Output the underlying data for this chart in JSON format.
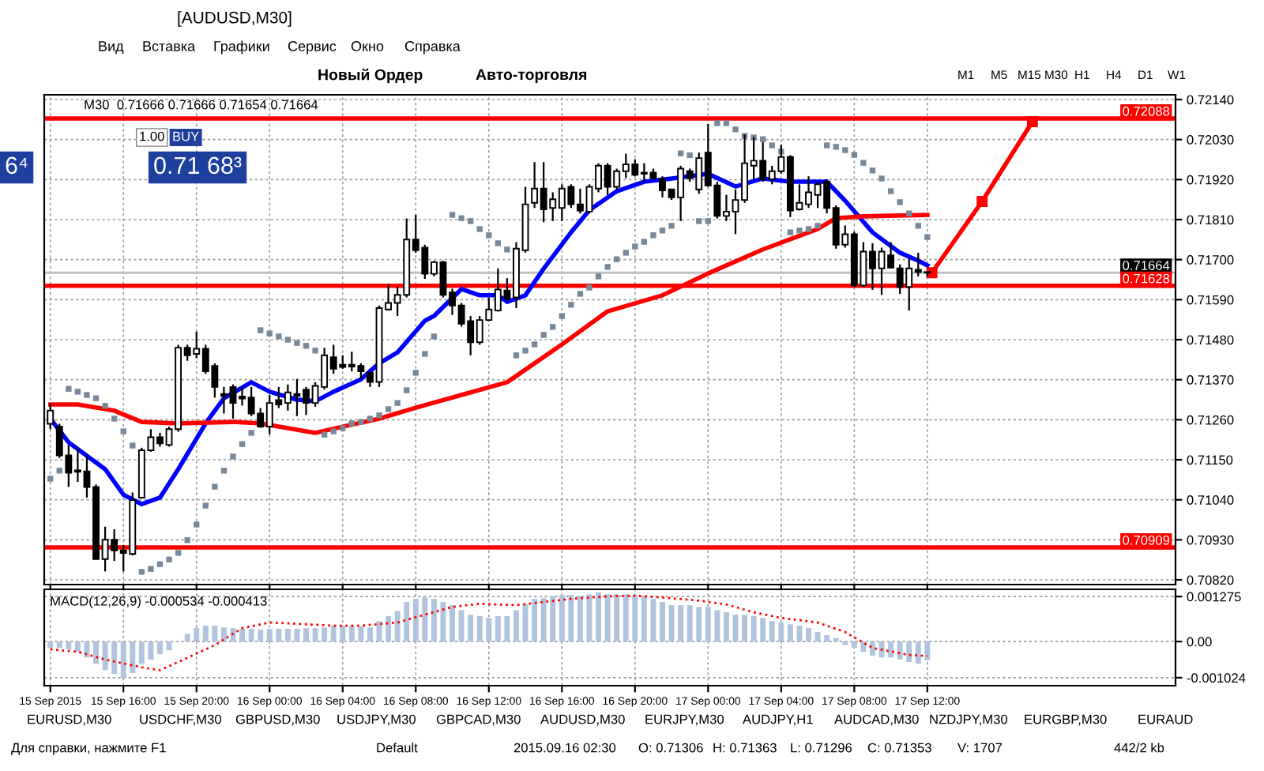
{
  "chart_data": [
    {
      "type": "candlestick",
      "title": "[AUDUSD,M30]",
      "subtitle": "M30  0.71666 0.71666 0.71654 0.71664",
      "x": [
        "2015-09-15T12:00",
        "2015-09-15T12:30",
        "2015-09-15T13:00",
        "2015-09-15T13:30",
        "2015-09-15T14:00",
        "2015-09-15T14:30",
        "2015-09-15T15:00",
        "2015-09-15T15:30",
        "2015-09-15T16:00",
        "2015-09-15T16:30",
        "2015-09-15T17:00",
        "2015-09-15T17:30",
        "2015-09-15T18:00",
        "2015-09-15T18:30",
        "2015-09-15T19:00",
        "2015-09-15T19:30",
        "2015-09-15T20:00",
        "2015-09-15T20:30",
        "2015-09-15T21:00",
        "2015-09-15T21:30",
        "2015-09-15T22:00",
        "2015-09-15T22:30",
        "2015-09-15T23:00",
        "2015-09-15T23:30",
        "2015-09-16T00:00",
        "2015-09-16T00:30",
        "2015-09-16T01:00",
        "2015-09-16T01:30",
        "2015-09-16T02:00",
        "2015-09-16T02:30",
        "2015-09-16T03:00",
        "2015-09-16T03:30",
        "2015-09-16T04:00",
        "2015-09-16T04:30",
        "2015-09-16T05:00",
        "2015-09-16T05:30",
        "2015-09-16T06:00",
        "2015-09-16T06:30",
        "2015-09-16T07:00",
        "2015-09-16T07:30",
        "2015-09-16T08:00",
        "2015-09-16T08:30",
        "2015-09-16T09:00",
        "2015-09-16T09:30",
        "2015-09-16T10:00",
        "2015-09-16T10:30",
        "2015-09-16T11:00",
        "2015-09-16T11:30",
        "2015-09-16T12:00",
        "2015-09-16T12:30",
        "2015-09-16T13:00",
        "2015-09-16T13:30",
        "2015-09-16T14:00",
        "2015-09-16T14:30",
        "2015-09-16T15:00",
        "2015-09-16T15:30",
        "2015-09-16T16:00",
        "2015-09-16T16:30",
        "2015-09-16T17:00",
        "2015-09-16T17:30",
        "2015-09-16T18:00",
        "2015-09-16T18:30",
        "2015-09-16T19:00",
        "2015-09-16T19:30",
        "2015-09-16T20:00",
        "2015-09-16T20:30",
        "2015-09-16T21:00",
        "2015-09-16T21:30",
        "2015-09-16T22:00",
        "2015-09-16T22:30",
        "2015-09-16T23:00",
        "2015-09-16T23:30",
        "2015-09-17T00:00",
        "2015-09-17T00:30",
        "2015-09-17T01:00",
        "2015-09-17T01:30",
        "2015-09-17T02:00",
        "2015-09-17T02:30",
        "2015-09-17T03:00",
        "2015-09-17T03:30",
        "2015-09-17T04:00",
        "2015-09-17T04:30",
        "2015-09-17T05:00",
        "2015-09-17T05:30",
        "2015-09-17T06:00",
        "2015-09-17T06:30",
        "2015-09-17T07:00",
        "2015-09-17T07:30",
        "2015-09-17T08:00",
        "2015-09-17T08:30",
        "2015-09-17T09:00",
        "2015-09-17T09:30",
        "2015-09-17T10:00",
        "2015-09-17T10:30",
        "2015-09-17T11:00",
        "2015-09-17T11:30",
        "2015-09-17T12:00"
      ],
      "ohlc": [
        [
          0.71249,
          0.71306,
          0.71234,
          0.71285
        ],
        [
          0.71241,
          0.71249,
          0.71155,
          0.71162
        ],
        [
          0.71162,
          0.71191,
          0.71075,
          0.71114
        ],
        [
          0.71121,
          0.71183,
          0.71089,
          0.71117
        ],
        [
          0.71118,
          0.71162,
          0.71046,
          0.71075
        ],
        [
          0.71075,
          0.71082,
          0.70877,
          0.70877
        ],
        [
          0.70877,
          0.70966,
          0.70843,
          0.7093
        ],
        [
          0.7093,
          0.70959,
          0.70872,
          0.70901
        ],
        [
          0.70901,
          0.70916,
          0.70843,
          0.70894
        ],
        [
          0.70891,
          0.7106,
          0.70887,
          0.71039
        ],
        [
          0.71046,
          0.71183,
          0.71046,
          0.71176
        ],
        [
          0.71176,
          0.71234,
          0.71172,
          0.71212
        ],
        [
          0.71212,
          0.71224,
          0.71186,
          0.71195
        ],
        [
          0.71191,
          0.71241,
          0.71186,
          0.71234
        ],
        [
          0.71234,
          0.71466,
          0.71227,
          0.71458
        ],
        [
          0.71458,
          0.71466,
          0.71422,
          0.71437
        ],
        [
          0.71441,
          0.71502,
          0.71429,
          0.71455
        ],
        [
          0.71455,
          0.71466,
          0.71386,
          0.71393
        ],
        [
          0.71408,
          0.71415,
          0.71321,
          0.7135
        ],
        [
          0.71331,
          0.7135,
          0.71277,
          0.71325
        ],
        [
          0.7135,
          0.71357,
          0.71263,
          0.71306
        ],
        [
          0.71324,
          0.7135,
          0.71299,
          0.71318
        ],
        [
          0.71321,
          0.7135,
          0.7127,
          0.71277
        ],
        [
          0.71277,
          0.71292,
          0.71238,
          0.71241
        ],
        [
          0.71241,
          0.71328,
          0.7122,
          0.71306
        ],
        [
          0.71314,
          0.7135,
          0.71292,
          0.71302
        ],
        [
          0.71306,
          0.71357,
          0.71285,
          0.71335
        ],
        [
          0.71331,
          0.71372,
          0.7127,
          0.71325
        ],
        [
          0.71343,
          0.7135,
          0.71273,
          0.71306
        ],
        [
          0.71306,
          0.71363,
          0.71296,
          0.71353
        ],
        [
          0.7135,
          0.71458,
          0.71343,
          0.71437
        ],
        [
          0.71432,
          0.71466,
          0.71386,
          0.714
        ],
        [
          0.71411,
          0.71437,
          0.714,
          0.71405
        ],
        [
          0.71411,
          0.71447,
          0.71393,
          0.71406
        ],
        [
          0.71408,
          0.71415,
          0.71372,
          0.71393
        ],
        [
          0.71389,
          0.71393,
          0.7135,
          0.71364
        ],
        [
          0.71364,
          0.71574,
          0.7135,
          0.71567
        ],
        [
          0.71563,
          0.71632,
          0.7156,
          0.71581
        ],
        [
          0.71581,
          0.71625,
          0.71545,
          0.71603
        ],
        [
          0.71603,
          0.71813,
          0.71596,
          0.71755
        ],
        [
          0.71755,
          0.71823,
          0.71719,
          0.71726
        ],
        [
          0.71733,
          0.71741,
          0.71647,
          0.71661
        ],
        [
          0.71661,
          0.71697,
          0.71654,
          0.71693
        ],
        [
          0.71693,
          0.71697,
          0.71596,
          0.71603
        ],
        [
          0.7161,
          0.7162,
          0.71548,
          0.71574
        ],
        [
          0.71574,
          0.71581,
          0.71516,
          0.71524
        ],
        [
          0.71531,
          0.71545,
          0.71437,
          0.71473
        ],
        [
          0.71473,
          0.71545,
          0.71466,
          0.71534
        ],
        [
          0.71534,
          0.71596,
          0.71531,
          0.71563
        ],
        [
          0.7156,
          0.71676,
          0.71557,
          0.71618
        ],
        [
          0.71615,
          0.71649,
          0.71586,
          0.71593
        ],
        [
          0.71596,
          0.71748,
          0.71567,
          0.7173
        ],
        [
          0.71726,
          0.719,
          0.71719,
          0.71852
        ],
        [
          0.71856,
          0.71968,
          0.71842,
          0.71895
        ],
        [
          0.71895,
          0.71968,
          0.71803,
          0.71838
        ],
        [
          0.71842,
          0.71885,
          0.71806,
          0.71866
        ],
        [
          0.71842,
          0.71907,
          0.71806,
          0.71895
        ],
        [
          0.719,
          0.71907,
          0.71842,
          0.71852
        ],
        [
          0.71852,
          0.71895,
          0.71827,
          0.71835
        ],
        [
          0.71832,
          0.71907,
          0.71827,
          0.719
        ],
        [
          0.71895,
          0.71965,
          0.71885,
          0.71958
        ],
        [
          0.71958,
          0.71965,
          0.71878,
          0.719
        ],
        [
          0.719,
          0.7195,
          0.71893,
          0.71943
        ],
        [
          0.71943,
          0.71991,
          0.71924,
          0.71962
        ],
        [
          0.71962,
          0.71976,
          0.71929,
          0.71933
        ],
        [
          0.71939,
          0.71965,
          0.71914,
          0.71936
        ],
        [
          0.71939,
          0.7195,
          0.71921,
          0.71924
        ],
        [
          0.71921,
          0.71929,
          0.71871,
          0.7189
        ],
        [
          0.71893,
          0.71895,
          0.71864,
          0.71871
        ],
        [
          0.71871,
          0.71958,
          0.71806,
          0.7195
        ],
        [
          0.71943,
          0.7195,
          0.71914,
          0.71924
        ],
        [
          0.71893,
          0.71994,
          0.71881,
          0.71979
        ],
        [
          0.71994,
          0.72073,
          0.719,
          0.71904
        ],
        [
          0.71904,
          0.71914,
          0.71813,
          0.7182
        ],
        [
          0.7182,
          0.71878,
          0.71806,
          0.71832
        ],
        [
          0.71832,
          0.71893,
          0.7177,
          0.71864
        ],
        [
          0.71864,
          0.72044,
          0.71856,
          0.71965
        ],
        [
          0.71958,
          0.72037,
          0.71921,
          0.71972
        ],
        [
          0.71972,
          0.72023,
          0.71914,
          0.71921
        ],
        [
          0.71921,
          0.71958,
          0.71907,
          0.71943
        ],
        [
          0.71943,
          0.72016,
          0.71936,
          0.71982
        ],
        [
          0.71982,
          0.71987,
          0.71817,
          0.71835
        ],
        [
          0.71838,
          0.71907,
          0.71835,
          0.71856
        ],
        [
          0.71852,
          0.71929,
          0.71842,
          0.71885
        ],
        [
          0.71878,
          0.71914,
          0.71842,
          0.71907
        ],
        [
          0.71914,
          0.71921,
          0.71827,
          0.71842
        ],
        [
          0.71842,
          0.71849,
          0.7173,
          0.71741
        ],
        [
          0.71741,
          0.71794,
          0.71733,
          0.7177
        ],
        [
          0.7177,
          0.71777,
          0.71625,
          0.71629
        ],
        [
          0.71629,
          0.71748,
          0.71625,
          0.71722
        ],
        [
          0.71722,
          0.71745,
          0.71617,
          0.71676
        ],
        [
          0.71676,
          0.71733,
          0.71603,
          0.71722
        ],
        [
          0.71712,
          0.71748,
          0.71676,
          0.71678
        ],
        [
          0.71676,
          0.71687,
          0.71606,
          0.71625
        ],
        [
          0.71625,
          0.71704,
          0.7156,
          0.71676
        ],
        [
          0.71672,
          0.71719,
          0.71654,
          0.71666
        ],
        [
          0.71666,
          0.71666,
          0.71654,
          0.71664
        ]
      ],
      "series": [
        {
          "type": "line",
          "color": "#0000ff",
          "x": [
            "2015-09-15T12:00",
            "2015-09-15T13:00",
            "2015-09-15T15:00",
            "2015-09-15T16:00",
            "2015-09-15T17:00",
            "2015-09-15T18:00",
            "2015-09-15T19:00",
            "2015-09-15T20:30",
            "2015-09-15T21:30",
            "2015-09-15T23:00",
            "2015-09-16T00:00",
            "2015-09-16T01:30",
            "2015-09-16T02:30",
            "2015-09-16T03:30",
            "2015-09-16T05:00",
            "2015-09-16T06:00",
            "2015-09-16T07:00",
            "2015-09-16T08:30",
            "2015-09-16T09:00",
            "2015-09-16T10:30",
            "2015-09-16T11:30",
            "2015-09-16T12:30",
            "2015-09-16T13:00",
            "2015-09-16T14:00",
            "2015-09-16T15:00",
            "2015-09-16T16:30",
            "2015-09-16T17:30",
            "2015-09-16T19:00",
            "2015-09-16T20:30",
            "2015-09-16T22:00",
            "2015-09-17T00:00",
            "2015-09-17T01:30",
            "2015-09-17T03:00",
            "2015-09-17T04:30",
            "2015-09-17T06:30",
            "2015-09-17T07:30",
            "2015-09-17T09:00",
            "2015-09-17T10:30",
            "2015-09-17T11:30",
            "2015-09-17T12:00"
          ],
          "values": [
            0.71263,
            0.71198,
            0.71124,
            0.71054,
            0.71028,
            0.71046,
            0.71124,
            0.7125,
            0.71319,
            0.71363,
            0.71337,
            0.71315,
            0.71311,
            0.71337,
            0.71371,
            0.71415,
            0.71445,
            0.71532,
            0.71545,
            0.71619,
            0.71602,
            0.71602,
            0.71584,
            0.71602,
            0.71675,
            0.71775,
            0.71836,
            0.71888,
            0.71914,
            0.71923,
            0.71936,
            0.71901,
            0.71923,
            0.71914,
            0.71914,
            0.71862,
            0.71775,
            0.71719,
            0.71697,
            0.71684
          ]
        },
        {
          "type": "line",
          "color": "#ff0000",
          "x": [
            "2015-09-15T12:00",
            "2015-09-15T13:30",
            "2015-09-15T15:30",
            "2015-09-15T17:00",
            "2015-09-15T19:00",
            "2015-09-15T22:00",
            "2015-09-15T23:30",
            "2015-09-16T01:00",
            "2015-09-16T02:30",
            "2015-09-16T04:00",
            "2015-09-16T06:00",
            "2015-09-16T08:00",
            "2015-09-16T10:30",
            "2015-09-16T13:00",
            "2015-09-16T16:00",
            "2015-09-16T18:30",
            "2015-09-16T21:30",
            "2015-09-17T00:00",
            "2015-09-17T03:00",
            "2015-09-17T06:00",
            "2015-09-17T07:00",
            "2015-09-17T08:30",
            "2015-09-17T12:00"
          ],
          "values": [
            0.71302,
            0.71302,
            0.71285,
            0.71254,
            0.7125,
            0.71254,
            0.7125,
            0.71237,
            0.71224,
            0.71241,
            0.71263,
            0.71293,
            0.71328,
            0.71363,
            0.71467,
            0.71558,
            0.71602,
            0.71662,
            0.71728,
            0.71784,
            0.71814,
            0.71819,
            0.71823
          ]
        },
        {
          "type": "scatter",
          "color": "#778899",
          "values": [
            0.71098,
            0.7112,
            0.71345,
            0.71337,
            0.71328,
            0.71319,
            0.71298,
            0.71263,
            0.71228,
            0.71189,
            0.70842,
            0.7085,
            0.70863,
            0.70876,
            0.70894,
            0.70929,
            0.70972,
            0.71024,
            0.71076,
            0.7112,
            0.71159,
            0.71193,
            0.71224,
            0.71506,
            0.71497,
            0.71489,
            0.7148,
            0.71471,
            0.71463,
            0.7145,
            0.71219,
            0.71228,
            0.71237,
            0.7125,
            0.71254,
            0.71263,
            0.71272,
            0.71289,
            0.71306,
            0.71341,
            0.71389,
            0.71441,
            0.71489,
            null,
            0.71823,
            0.71814,
            0.71806,
            0.71784,
            0.71767,
            0.71745,
            0.71728,
            0.71437,
            0.7145,
            0.71467,
            0.71493,
            0.71515,
            0.71545,
            0.71576,
            0.71606,
            0.71623,
            0.71654,
            0.7168,
            0.71701,
            0.71719,
            0.71736,
            0.71749,
            0.71767,
            0.7178,
            0.71793,
            0.71992,
            0.71987,
            0.71806,
            0.71806,
            0.72075,
            0.72075,
            0.72058,
            0.7204,
            0.72036,
            0.72031,
            0.72014,
            0.71997,
            0.71775,
            0.7178,
            0.71784,
            0.71793,
            0.72014,
            0.7201,
            0.72001,
            0.71988,
            0.71966,
            0.71945,
            0.71923,
            0.71888,
            0.71858,
            0.71827,
            0.71793,
            0.71762
          ]
        },
        {
          "type": "line",
          "color": "#ff0000",
          "marker": "square",
          "x": [
            "2015-09-17T12:15",
            "2015-09-17T15:00",
            "2015-09-17T17:45"
          ],
          "values": [
            0.71664,
            0.7186,
            0.72079
          ]
        }
      ],
      "xlim": [
        "2015-09-15T11:40",
        "2015-09-18T01:35"
      ],
      "xticks": [
        {
          "value": "2015-09-15T12:00",
          "label": null
        },
        {
          "value": "2015-09-15T16:00",
          "label": null
        },
        {
          "value": "2015-09-15T20:00",
          "label": null
        },
        {
          "value": "2015-09-16T00:00",
          "label": null
        },
        {
          "value": "2015-09-16T04:00",
          "label": null
        },
        {
          "value": "2015-09-16T08:00",
          "label": null
        },
        {
          "value": "2015-09-16T12:00",
          "label": null
        },
        {
          "value": "2015-09-16T16:00",
          "label": null
        },
        {
          "value": "2015-09-16T20:00",
          "label": null
        },
        {
          "value": "2015-09-17T00:00",
          "label": null
        },
        {
          "value": "2015-09-17T04:00",
          "label": null
        },
        {
          "value": "2015-09-17T08:00",
          "label": null
        },
        {
          "value": "2015-09-17T12:00",
          "label": null
        }
      ],
      "ylim": [
        0.70807,
        0.72153
      ],
      "yticks": [
        {
          "value": 0.7082,
          "label": "0.70820"
        },
        {
          "value": 0.7093,
          "label": "0.70930"
        },
        {
          "value": 0.7104,
          "label": "0.71040"
        },
        {
          "value": 0.7115,
          "label": "0.71150"
        },
        {
          "value": 0.7126,
          "label": "0.71260"
        },
        {
          "value": 0.7137,
          "label": "0.71370"
        },
        {
          "value": 0.7148,
          "label": "0.71480"
        },
        {
          "value": 0.7159,
          "label": "0.71590"
        },
        {
          "value": 0.717,
          "label": "0.71700"
        },
        {
          "value": 0.7181,
          "label": "0.71810"
        },
        {
          "value": 0.7192,
          "label": "0.71920"
        },
        {
          "value": 0.7203,
          "label": "0.72030"
        },
        {
          "value": 0.7214,
          "label": "0.72140"
        }
      ],
      "tick_labels": "y",
      "grid": true,
      "ref_lines": [
        {
          "axis": "y",
          "value": 0.72088,
          "label": "0.72088",
          "color": "#ff0000"
        },
        {
          "axis": "y",
          "value": 0.71664,
          "label": "0.71664",
          "color": "#c0c0c0"
        },
        {
          "axis": "y",
          "value": 0.71628,
          "label": "0.71628",
          "color": "#ff0000"
        },
        {
          "axis": "y",
          "value": 0.70909,
          "label": "0.70909",
          "color": "#ff0000"
        }
      ],
      "annotations": [
        "Вид",
        "Вставка",
        "Графики",
        "Сервис",
        "Окно",
        "Справка",
        "Новый Ордер",
        "Авто-торговля",
        "M1",
        "M5",
        "M15",
        "M30",
        "H1",
        "H4",
        "D1",
        "W1",
        "1.00",
        "BUY",
        "0.71 68³",
        "6⁴",
        "EURUSD,M30",
        "USDCHF,M30",
        "GBPUSD,M30",
        "USDJPY,M30",
        "GBPCAD,M30",
        "AUDUSD,M30",
        "EURJPY,M30",
        "AUDJPY,H1",
        "AUDCAD,M30",
        "NZDJPY,M30",
        "EURGBP,M30",
        "EURAUD",
        "Для справки, нажмите F1",
        "Default",
        "2015.09.16 02:30",
        "O: 0.71306",
        "H: 0.71363",
        "L: 0.71296",
        "C: 0.71353",
        "V: 1707",
        "442/2 kb"
      ]
    },
    {
      "type": "bar",
      "title": "MACD(12,26,9) -0.000534 -0.000413",
      "x": [
        "2015-09-15T12:00",
        "2015-09-15T12:30",
        "2015-09-15T13:00",
        "2015-09-15T13:30",
        "2015-09-15T14:00",
        "2015-09-15T14:30",
        "2015-09-15T15:00",
        "2015-09-15T15:30",
        "2015-09-15T16:00",
        "2015-09-15T16:30",
        "2015-09-15T17:00",
        "2015-09-15T17:30",
        "2015-09-15T18:00",
        "2015-09-15T18:30",
        "2015-09-15T19:00",
        "2015-09-15T19:30",
        "2015-09-15T20:00",
        "2015-09-15T20:30",
        "2015-09-15T21:00",
        "2015-09-15T21:30",
        "2015-09-15T22:00",
        "2015-09-15T22:30",
        "2015-09-15T23:00",
        "2015-09-15T23:30",
        "2015-09-16T00:00",
        "2015-09-16T00:30",
        "2015-09-16T01:00",
        "2015-09-16T01:30",
        "2015-09-16T02:00",
        "2015-09-16T02:30",
        "2015-09-16T03:00",
        "2015-09-16T03:30",
        "2015-09-16T04:00",
        "2015-09-16T04:30",
        "2015-09-16T05:00",
        "2015-09-16T05:30",
        "2015-09-16T06:00",
        "2015-09-16T06:30",
        "2015-09-16T07:00",
        "2015-09-16T07:30",
        "2015-09-16T08:00",
        "2015-09-16T08:30",
        "2015-09-16T09:00",
        "2015-09-16T09:30",
        "2015-09-16T10:00",
        "2015-09-16T10:30",
        "2015-09-16T11:00",
        "2015-09-16T11:30",
        "2015-09-16T12:00",
        "2015-09-16T12:30",
        "2015-09-16T13:00",
        "2015-09-16T13:30",
        "2015-09-16T14:00",
        "2015-09-16T14:30",
        "2015-09-16T15:00",
        "2015-09-16T15:30",
        "2015-09-16T16:00",
        "2015-09-16T16:30",
        "2015-09-16T17:00",
        "2015-09-16T17:30",
        "2015-09-16T18:00",
        "2015-09-16T18:30",
        "2015-09-16T19:00",
        "2015-09-16T19:30",
        "2015-09-16T20:00",
        "2015-09-16T20:30",
        "2015-09-16T21:00",
        "2015-09-16T21:30",
        "2015-09-16T22:00",
        "2015-09-16T22:30",
        "2015-09-16T23:00",
        "2015-09-16T23:30",
        "2015-09-17T00:00",
        "2015-09-17T00:30",
        "2015-09-17T01:00",
        "2015-09-17T01:30",
        "2015-09-17T02:00",
        "2015-09-17T02:30",
        "2015-09-17T03:00",
        "2015-09-17T03:30",
        "2015-09-17T04:00",
        "2015-09-17T04:30",
        "2015-09-17T05:00",
        "2015-09-17T05:30",
        "2015-09-17T06:00",
        "2015-09-17T06:30",
        "2015-09-17T07:00",
        "2015-09-17T07:30",
        "2015-09-17T08:00",
        "2015-09-17T08:30",
        "2015-09-17T09:00",
        "2015-09-17T09:30",
        "2015-09-17T10:00",
        "2015-09-17T10:30",
        "2015-09-17T11:00",
        "2015-09-17T11:30",
        "2015-09-17T12:00"
      ],
      "series": [
        {
          "type": "bar",
          "color": "#b0c4de",
          "values": [
            -0.00018,
            -0.00018,
            -0.00022,
            -0.00029,
            -0.00045,
            -0.00063,
            -0.00081,
            -0.00092,
            -0.00103,
            -0.00089,
            -0.00063,
            -0.00051,
            -0.00036,
            -0.00025,
            0,
            0.00022,
            0.00038,
            0.00045,
            0.00045,
            0.0004,
            0.00038,
            0.00036,
            0.00036,
            0.00034,
            0.00036,
            0.00036,
            0.00036,
            0.00036,
            0.00038,
            0.00038,
            0.0004,
            0.00045,
            0.00045,
            0.00045,
            0.00043,
            0.0004,
            0.00058,
            0.00072,
            0.00087,
            0.00112,
            0.00121,
            0.00125,
            0.00121,
            0.00112,
            0.00103,
            0.00089,
            0.00076,
            0.00072,
            0.00067,
            0.00072,
            0.00072,
            0.00089,
            0.00107,
            0.00121,
            0.00123,
            0.0013,
            0.00132,
            0.00132,
            0.0013,
            0.00134,
            0.00139,
            0.00134,
            0.00134,
            0.00134,
            0.00132,
            0.0013,
            0.00121,
            0.00112,
            0.00103,
            0.00103,
            0.00103,
            0.00098,
            0.00098,
            0.00089,
            0.00083,
            0.00076,
            0.00076,
            0.00072,
            0.00067,
            0.00058,
            0.00054,
            0.00049,
            0.00045,
            0.00038,
            0.00027,
            0.00018,
            0.0001,
            -0.0001,
            -0.00018,
            -0.00029,
            -0.0004,
            -0.00045,
            -0.00045,
            -0.00051,
            -0.00058,
            -0.00063,
            -0.00053
          ]
        },
        {
          "type": "line",
          "color": "#ff0000",
          "line_style": "dotted",
          "x": [
            "2015-09-15T12:00",
            "2015-09-15T13:30",
            "2015-09-15T15:00",
            "2015-09-15T17:00",
            "2015-09-15T18:00",
            "2015-09-15T19:00",
            "2015-09-15T21:00",
            "2015-09-15T22:30",
            "2015-09-16T00:00",
            "2015-09-16T02:00",
            "2015-09-16T03:30",
            "2015-09-16T05:00",
            "2015-09-16T07:00",
            "2015-09-16T08:30",
            "2015-09-16T10:00",
            "2015-09-16T11:30",
            "2015-09-16T13:30",
            "2015-09-16T15:00",
            "2015-09-16T16:30",
            "2015-09-16T18:30",
            "2015-09-16T20:00",
            "2015-09-16T21:30",
            "2015-09-16T23:30",
            "2015-09-17T01:00",
            "2015-09-17T02:30",
            "2015-09-17T04:00",
            "2015-09-17T06:00",
            "2015-09-17T07:30",
            "2015-09-17T09:00",
            "2015-09-17T11:00",
            "2015-09-17T12:00"
          ],
          "values": [
            -0.00022,
            -0.00029,
            -0.00051,
            -0.00073,
            -0.00081,
            -0.00058,
            -0.0001,
            0.00038,
            0.00054,
            0.00049,
            0.00045,
            0.00045,
            0.00054,
            0.00076,
            0.00098,
            0.00107,
            0.00103,
            0.00112,
            0.00121,
            0.00128,
            0.0013,
            0.00125,
            0.00116,
            0.00105,
            0.00083,
            0.00067,
            0.00054,
            0.00027,
            -0.00018,
            -0.00038,
            -0.00041
          ]
        }
      ],
      "xlim": [
        "2015-09-15T11:40",
        "2015-09-18T01:35"
      ],
      "xticks": [
        {
          "value": "2015-09-15T12:00",
          "label": "15 Sep 2015"
        },
        {
          "value": "2015-09-15T16:00",
          "label": "15 Sep 16:00"
        },
        {
          "value": "2015-09-15T20:00",
          "label": "15 Sep 20:00"
        },
        {
          "value": "2015-09-16T00:00",
          "label": "16 Sep 00:00"
        },
        {
          "value": "2015-09-16T04:00",
          "label": "16 Sep 04:00"
        },
        {
          "value": "2015-09-16T08:00",
          "label": "16 Sep 08:00"
        },
        {
          "value": "2015-09-16T12:00",
          "label": "16 Sep 12:00"
        },
        {
          "value": "2015-09-16T16:00",
          "label": "16 Sep 16:00"
        },
        {
          "value": "2015-09-16T20:00",
          "label": "16 Sep 20:00"
        },
        {
          "value": "2015-09-17T00:00",
          "label": "17 Sep 00:00"
        },
        {
          "value": "2015-09-17T04:00",
          "label": "17 Sep 04:00"
        },
        {
          "value": "2015-09-17T08:00",
          "label": "17 Sep 08:00"
        },
        {
          "value": "2015-09-17T12:00",
          "label": "17 Sep 12:00"
        }
      ],
      "ylim": [
        -0.00125,
        0.00148
      ],
      "yticks": [
        0.001275,
        {
          "value": 0,
          "label": "0.00"
        },
        {
          "value": -0.001024,
          "label": "-0.001024"
        }
      ],
      "grid": true
    }
  ]
}
